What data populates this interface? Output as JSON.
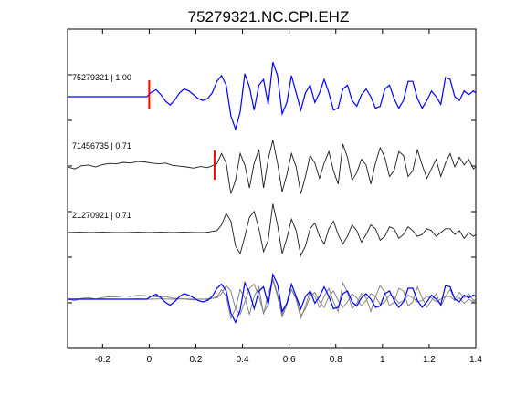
{
  "chart_data": {
    "type": "line",
    "title": "75279321.NC.CPI.EHZ",
    "xlim": [
      -0.35,
      1.4
    ],
    "xticks": [
      -0.2,
      0,
      0.2,
      0.4,
      0.6,
      0.8,
      1,
      1.2,
      1.4
    ],
    "xtick_labels": [
      "-0.2",
      "0",
      "0.2",
      "0.4",
      "0.6",
      "0.8",
      "1",
      "1.2",
      "1.4"
    ],
    "grid": false,
    "legend": "none",
    "colors": {
      "blue": "#0000ff",
      "dark": "#1a1a1a",
      "gray": "#7a7a7a",
      "pick": "#ff0000"
    },
    "traces": [
      {
        "name": "75279321 | 1.00",
        "label": "75279321 | 1.00",
        "color": "#0000ff",
        "pick_time": 0.0,
        "points": [
          [
            -0.35,
            0.0
          ],
          [
            -0.3,
            0.0
          ],
          [
            -0.25,
            0.0
          ],
          [
            -0.2,
            0.0
          ],
          [
            -0.15,
            0.0
          ],
          [
            -0.1,
            0.0
          ],
          [
            -0.05,
            0.0
          ],
          [
            -0.01,
            0.0
          ],
          [
            0.01,
            0.12
          ],
          [
            0.03,
            0.18
          ],
          [
            0.05,
            0.05
          ],
          [
            0.07,
            -0.12
          ],
          [
            0.09,
            -0.22
          ],
          [
            0.11,
            -0.08
          ],
          [
            0.13,
            0.1
          ],
          [
            0.15,
            0.2
          ],
          [
            0.17,
            0.15
          ],
          [
            0.19,
            0.05
          ],
          [
            0.21,
            -0.05
          ],
          [
            0.23,
            -0.1
          ],
          [
            0.25,
            -0.05
          ],
          [
            0.27,
            0.1
          ],
          [
            0.29,
            0.4
          ],
          [
            0.31,
            0.55
          ],
          [
            0.33,
            0.3
          ],
          [
            0.35,
            -0.5
          ],
          [
            0.37,
            -0.85
          ],
          [
            0.39,
            -0.4
          ],
          [
            0.41,
            0.6
          ],
          [
            0.43,
            0.25
          ],
          [
            0.45,
            -0.35
          ],
          [
            0.47,
            0.3
          ],
          [
            0.49,
            0.45
          ],
          [
            0.51,
            -0.2
          ],
          [
            0.53,
            0.9
          ],
          [
            0.55,
            0.55
          ],
          [
            0.57,
            -0.45
          ],
          [
            0.59,
            -0.15
          ],
          [
            0.61,
            0.55
          ],
          [
            0.63,
            0.1
          ],
          [
            0.65,
            -0.35
          ],
          [
            0.67,
            0.1
          ],
          [
            0.69,
            0.3
          ],
          [
            0.71,
            -0.15
          ],
          [
            0.73,
            0.1
          ],
          [
            0.75,
            0.45
          ],
          [
            0.77,
            0.1
          ],
          [
            0.79,
            -0.35
          ],
          [
            0.81,
            -0.3
          ],
          [
            0.83,
            0.2
          ],
          [
            0.85,
            0.3
          ],
          [
            0.87,
            -0.1
          ],
          [
            0.89,
            -0.25
          ],
          [
            0.91,
            0.05
          ],
          [
            0.93,
            0.2
          ],
          [
            0.95,
            0.0
          ],
          [
            0.97,
            -0.3
          ],
          [
            0.99,
            -0.25
          ],
          [
            1.01,
            0.2
          ],
          [
            1.03,
            0.3
          ],
          [
            1.05,
            -0.05
          ],
          [
            1.07,
            -0.3
          ],
          [
            1.09,
            -0.1
          ],
          [
            1.11,
            0.4
          ],
          [
            1.13,
            0.4
          ],
          [
            1.15,
            -0.05
          ],
          [
            1.17,
            -0.3
          ],
          [
            1.19,
            -0.1
          ],
          [
            1.21,
            0.15
          ],
          [
            1.23,
            0.0
          ],
          [
            1.25,
            -0.2
          ],
          [
            1.27,
            0.5
          ],
          [
            1.29,
            0.45
          ],
          [
            1.31,
            0.0
          ],
          [
            1.33,
            -0.1
          ],
          [
            1.35,
            0.15
          ],
          [
            1.37,
            0.05
          ],
          [
            1.39,
            0.15
          ],
          [
            1.4,
            0.1
          ]
        ]
      },
      {
        "name": "71456735 | 0.71",
        "label": "71456735 | 0.71",
        "color": "#1a1a1a",
        "pick_time": 0.28,
        "points": [
          [
            -0.35,
            0.0
          ],
          [
            -0.32,
            -0.05
          ],
          [
            -0.29,
            0.03
          ],
          [
            -0.26,
            0.05
          ],
          [
            -0.23,
            0.0
          ],
          [
            -0.2,
            0.06
          ],
          [
            -0.17,
            0.09
          ],
          [
            -0.14,
            0.08
          ],
          [
            -0.11,
            0.12
          ],
          [
            -0.08,
            0.1
          ],
          [
            -0.05,
            0.14
          ],
          [
            -0.02,
            0.13
          ],
          [
            0.01,
            0.1
          ],
          [
            0.04,
            0.08
          ],
          [
            0.07,
            0.1
          ],
          [
            0.1,
            0.04
          ],
          [
            0.13,
            0.02
          ],
          [
            0.16,
            0.0
          ],
          [
            0.19,
            -0.03
          ],
          [
            0.22,
            0.01
          ],
          [
            0.25,
            -0.02
          ],
          [
            0.27,
            0.03
          ],
          [
            0.29,
            0.08
          ],
          [
            0.31,
            0.35
          ],
          [
            0.33,
            0.1
          ],
          [
            0.35,
            -0.7
          ],
          [
            0.37,
            -0.35
          ],
          [
            0.39,
            0.35
          ],
          [
            0.41,
            0.05
          ],
          [
            0.43,
            -0.55
          ],
          [
            0.45,
            0.1
          ],
          [
            0.47,
            0.45
          ],
          [
            0.49,
            -0.55
          ],
          [
            0.51,
            0.2
          ],
          [
            0.53,
            0.7
          ],
          [
            0.55,
            0.1
          ],
          [
            0.57,
            -0.65
          ],
          [
            0.59,
            -0.2
          ],
          [
            0.61,
            0.35
          ],
          [
            0.63,
            0.0
          ],
          [
            0.65,
            -0.7
          ],
          [
            0.67,
            -0.25
          ],
          [
            0.69,
            0.3
          ],
          [
            0.71,
            0.1
          ],
          [
            0.73,
            -0.3
          ],
          [
            0.75,
            0.1
          ],
          [
            0.77,
            0.4
          ],
          [
            0.79,
            -0.1
          ],
          [
            0.81,
            -0.45
          ],
          [
            0.83,
            0.6
          ],
          [
            0.85,
            0.25
          ],
          [
            0.87,
            -0.35
          ],
          [
            0.89,
            -0.15
          ],
          [
            0.91,
            0.2
          ],
          [
            0.93,
            0.05
          ],
          [
            0.95,
            -0.45
          ],
          [
            0.97,
            0.1
          ],
          [
            0.99,
            0.5
          ],
          [
            1.01,
            0.25
          ],
          [
            1.03,
            -0.25
          ],
          [
            1.05,
            -0.1
          ],
          [
            1.07,
            0.4
          ],
          [
            1.09,
            0.3
          ],
          [
            1.11,
            -0.25
          ],
          [
            1.13,
            -0.1
          ],
          [
            1.15,
            0.45
          ],
          [
            1.17,
            0.05
          ],
          [
            1.19,
            -0.3
          ],
          [
            1.21,
            -0.05
          ],
          [
            1.23,
            0.2
          ],
          [
            1.25,
            -0.25
          ],
          [
            1.27,
            0.1
          ],
          [
            1.29,
            0.35
          ],
          [
            1.31,
            0.0
          ],
          [
            1.33,
            0.25
          ],
          [
            1.35,
            0.05
          ],
          [
            1.37,
            0.2
          ],
          [
            1.39,
            -0.05
          ],
          [
            1.4,
            0.0
          ]
        ]
      },
      {
        "name": "21270921 | 0.71",
        "label": "21270921 | 0.71",
        "color": "#1a1a1a",
        "pick_time": null,
        "points": [
          [
            -0.35,
            0.0
          ],
          [
            -0.3,
            0.01
          ],
          [
            -0.25,
            0.0
          ],
          [
            -0.2,
            0.01
          ],
          [
            -0.15,
            0.0
          ],
          [
            -0.1,
            0.0
          ],
          [
            -0.05,
            0.01
          ],
          [
            0.0,
            0.0
          ],
          [
            0.05,
            0.01
          ],
          [
            0.1,
            0.0
          ],
          [
            0.15,
            0.01
          ],
          [
            0.2,
            0.0
          ],
          [
            0.24,
            0.0
          ],
          [
            0.27,
            0.03
          ],
          [
            0.29,
            0.05
          ],
          [
            0.31,
            0.2
          ],
          [
            0.33,
            0.5
          ],
          [
            0.35,
            0.3
          ],
          [
            0.37,
            -0.35
          ],
          [
            0.39,
            -0.55
          ],
          [
            0.41,
            -0.1
          ],
          [
            0.43,
            0.4
          ],
          [
            0.45,
            0.55
          ],
          [
            0.47,
            0.1
          ],
          [
            0.49,
            -0.5
          ],
          [
            0.51,
            -0.2
          ],
          [
            0.53,
            0.75
          ],
          [
            0.55,
            0.2
          ],
          [
            0.57,
            -0.55
          ],
          [
            0.59,
            -0.15
          ],
          [
            0.61,
            0.35
          ],
          [
            0.63,
            0.05
          ],
          [
            0.65,
            -0.6
          ],
          [
            0.67,
            -0.35
          ],
          [
            0.69,
            0.1
          ],
          [
            0.71,
            0.25
          ],
          [
            0.73,
            -0.1
          ],
          [
            0.75,
            -0.3
          ],
          [
            0.77,
            0.1
          ],
          [
            0.79,
            0.3
          ],
          [
            0.81,
            -0.05
          ],
          [
            0.83,
            -0.3
          ],
          [
            0.85,
            -0.1
          ],
          [
            0.87,
            0.2
          ],
          [
            0.89,
            0.05
          ],
          [
            0.91,
            -0.25
          ],
          [
            0.93,
            -0.05
          ],
          [
            0.95,
            0.2
          ],
          [
            0.97,
            0.1
          ],
          [
            0.99,
            -0.2
          ],
          [
            1.01,
            -0.1
          ],
          [
            1.03,
            0.15
          ],
          [
            1.05,
            0.1
          ],
          [
            1.07,
            -0.15
          ],
          [
            1.09,
            -0.05
          ],
          [
            1.11,
            0.15
          ],
          [
            1.13,
            0.05
          ],
          [
            1.15,
            -0.1
          ],
          [
            1.17,
            -0.05
          ],
          [
            1.19,
            0.1
          ],
          [
            1.21,
            0.05
          ],
          [
            1.23,
            -0.1
          ],
          [
            1.25,
            0.0
          ],
          [
            1.27,
            0.1
          ],
          [
            1.29,
            0.1
          ],
          [
            1.31,
            -0.05
          ],
          [
            1.33,
            0.05
          ],
          [
            1.35,
            -0.15
          ],
          [
            1.37,
            0.0
          ],
          [
            1.39,
            -0.1
          ],
          [
            1.4,
            -0.05
          ]
        ]
      }
    ]
  }
}
